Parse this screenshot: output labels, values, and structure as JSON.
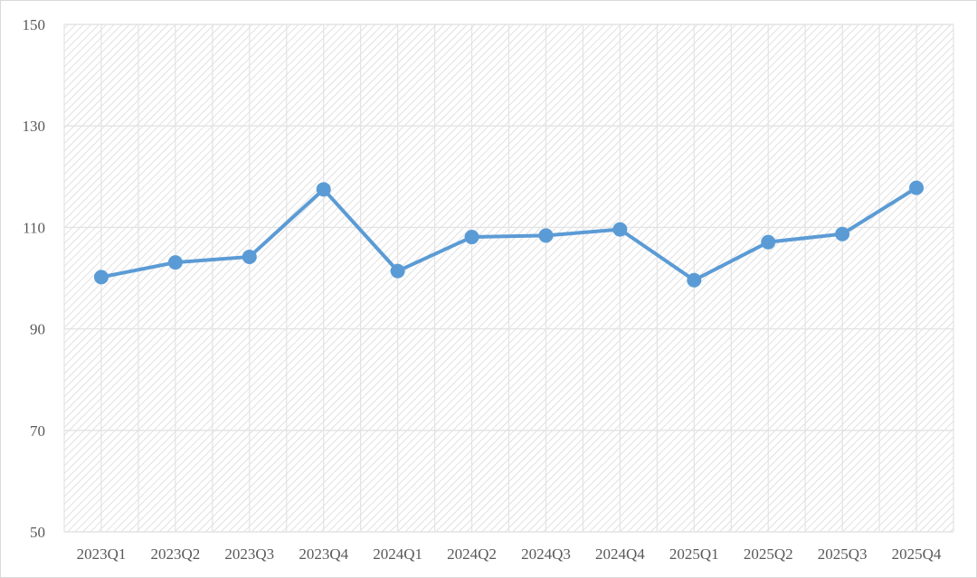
{
  "chart_data": {
    "type": "line",
    "title": "",
    "xlabel": "",
    "ylabel": "",
    "categories": [
      "2023Q1",
      "2023Q2",
      "2023Q3",
      "2023Q4",
      "2024Q1",
      "2024Q2",
      "2024Q3",
      "2024Q4",
      "2025Q1",
      "2025Q2",
      "2025Q3",
      "2025Q4"
    ],
    "series": [
      {
        "values": [
          100.2,
          103.1,
          104.2,
          117.5,
          101.4,
          108.1,
          108.4,
          109.6,
          99.6,
          107.1,
          108.7,
          117.8
        ],
        "color": "#5b9bd5"
      }
    ],
    "ylim": [
      50,
      150
    ],
    "yticks": [
      50,
      70,
      90,
      110,
      130,
      150
    ],
    "grid": true,
    "background": "diagonal hatch",
    "legend": "none"
  }
}
